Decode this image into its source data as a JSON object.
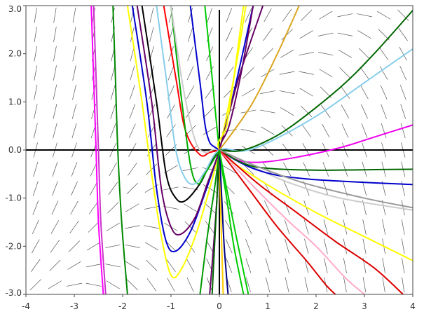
{
  "chart_data": {
    "type": "line",
    "title": "",
    "xlabel": "",
    "ylabel": "",
    "xlim": [
      -4,
      4
    ],
    "ylim": [
      -3,
      3
    ],
    "x_ticks": [
      "-4",
      "-3",
      "-2",
      "-1",
      "0",
      "1",
      "2",
      "3",
      "4"
    ],
    "y_ticks": [
      "3.0",
      "2.0",
      "1.0",
      "0.0",
      "-1.0",
      "-2.0",
      "-3.0"
    ],
    "x_tick_values": [
      -4,
      -3,
      -2,
      -1,
      0,
      1,
      2,
      3,
      4
    ],
    "y_tick_values": [
      3,
      2,
      1,
      0,
      -1,
      -2,
      -3
    ],
    "grid": false,
    "slope_field": {
      "equation": "dy/dx = y - x",
      "x_step": 0.4,
      "y_step": 0.4,
      "color": "#555555"
    },
    "series": [
      {
        "color": "#ff00ff",
        "values": [
          [
            -2.65,
            3.0
          ],
          [
            -2.6,
            1.5
          ],
          [
            -2.55,
            0.0
          ],
          [
            -2.5,
            -1.5
          ],
          [
            -2.4,
            -3.0
          ]
        ]
      },
      {
        "color": "#cc33cc",
        "values": [
          [
            -2.6,
            3.0
          ],
          [
            -2.55,
            1.5
          ],
          [
            -2.5,
            0.0
          ],
          [
            -2.45,
            -1.5
          ],
          [
            -2.35,
            -3.0
          ]
        ]
      },
      {
        "color": "#008800",
        "values": [
          [
            -2.2,
            3.0
          ],
          [
            -2.15,
            1.5
          ],
          [
            -2.1,
            0.0
          ],
          [
            -2.02,
            -1.5
          ],
          [
            -1.9,
            -3.0
          ]
        ]
      },
      {
        "color": "#ffff00",
        "values": [
          [
            -1.9,
            3.0
          ],
          [
            -1.6,
            1.0
          ],
          [
            -1.4,
            -0.5
          ],
          [
            -1.2,
            -1.8
          ],
          [
            -1.0,
            -2.6
          ],
          [
            -0.8,
            -2.5
          ],
          [
            -0.5,
            -1.8
          ],
          [
            -0.2,
            -0.8
          ],
          [
            0.0,
            0.0
          ],
          [
            0.3,
            1.5
          ],
          [
            0.55,
            3.0
          ]
        ]
      },
      {
        "color": "#0000cc",
        "values": [
          [
            -1.8,
            3.0
          ],
          [
            -1.5,
            1.0
          ],
          [
            -1.3,
            -0.8
          ],
          [
            -1.1,
            -1.9
          ],
          [
            -0.9,
            -2.1
          ],
          [
            -0.6,
            -1.7
          ],
          [
            -0.3,
            -0.9
          ],
          [
            0.0,
            0.0
          ],
          [
            0.3,
            1.2
          ],
          [
            0.7,
            3.0
          ]
        ]
      },
      {
        "color": "#660066",
        "values": [
          [
            -1.7,
            3.0
          ],
          [
            -1.4,
            1.0
          ],
          [
            -1.2,
            -0.8
          ],
          [
            -1.0,
            -1.6
          ],
          [
            -0.8,
            -1.75
          ],
          [
            -0.5,
            -1.4
          ],
          [
            -0.25,
            -0.7
          ],
          [
            0.0,
            0.0
          ],
          [
            0.4,
            1.5
          ],
          [
            0.9,
            3.0
          ]
        ]
      },
      {
        "color": "#000000",
        "values": [
          [
            -1.6,
            3.0
          ],
          [
            -1.3,
            1.0
          ],
          [
            -1.1,
            -0.5
          ],
          [
            -0.9,
            -1.0
          ],
          [
            -0.7,
            -1.05
          ],
          [
            -0.4,
            -0.7
          ],
          [
            -0.2,
            -0.3
          ],
          [
            0.0,
            0.0
          ]
        ]
      },
      {
        "color": "#ff0000",
        "values": [
          [
            -1.15,
            3.0
          ],
          [
            -0.9,
            1.5
          ],
          [
            -0.7,
            0.4
          ],
          [
            -0.4,
            -0.1
          ],
          [
            -0.2,
            -0.05
          ],
          [
            0.0,
            0.0
          ]
        ]
      },
      {
        "color": "#00aa00",
        "values": [
          [
            -1.0,
            3.0
          ],
          [
            -0.8,
            1.2
          ],
          [
            -0.6,
            -0.3
          ],
          [
            -0.45,
            -0.7
          ],
          [
            -0.3,
            -0.5
          ],
          [
            0.0,
            0.0
          ]
        ]
      },
      {
        "color": "#87ceeb",
        "values": [
          [
            -1.3,
            3.0
          ],
          [
            -1.1,
            1.5
          ],
          [
            -0.9,
            0.0
          ],
          [
            -0.7,
            -0.6
          ],
          [
            -0.5,
            -0.7
          ],
          [
            -0.3,
            -0.45
          ],
          [
            0.0,
            0.0
          ],
          [
            0.5,
            -0.02
          ],
          [
            1.0,
            0.15
          ],
          [
            2.0,
            0.7
          ],
          [
            3.0,
            1.4
          ],
          [
            4.0,
            2.1
          ]
        ]
      },
      {
        "color": "#cccccc",
        "values": [
          [
            -1.0,
            3.0
          ],
          [
            -0.75,
            1.3
          ],
          [
            -0.5,
            0.2
          ],
          [
            -0.3,
            -0.05
          ],
          [
            0.0,
            0.0
          ],
          [
            0.8,
            -0.4
          ],
          [
            1.5,
            -0.7
          ],
          [
            2.5,
            -1.0
          ],
          [
            4.0,
            -1.25
          ]
        ]
      },
      {
        "color": "#0000cc",
        "values": [
          [
            -0.6,
            3.0
          ],
          [
            -0.4,
            1.4
          ],
          [
            -0.25,
            0.3
          ],
          [
            0.0,
            0.0
          ],
          [
            0.8,
            -0.42
          ],
          [
            1.8,
            -0.6
          ],
          [
            4.0,
            -0.72
          ]
        ]
      },
      {
        "color": "#00cc00",
        "values": [
          [
            -0.3,
            3.0
          ],
          [
            -0.15,
            1.5
          ],
          [
            0.0,
            0.0
          ],
          [
            0.15,
            -1.0
          ],
          [
            0.3,
            -2.0
          ],
          [
            0.5,
            -3.0
          ]
        ]
      },
      {
        "color": "#ffff00",
        "values": [
          [
            0.5,
            3.0
          ],
          [
            0.3,
            1.5
          ],
          [
            0.15,
            0.5
          ],
          [
            0.0,
            0.0
          ],
          [
            0.8,
            -0.6
          ],
          [
            2.0,
            -1.3
          ],
          [
            3.0,
            -1.8
          ],
          [
            4.0,
            -2.3
          ]
        ]
      },
      {
        "color": "#660066",
        "values": [
          [
            0.7,
            3.0
          ],
          [
            0.45,
            1.6
          ],
          [
            0.2,
            0.5
          ],
          [
            0.0,
            0.0
          ],
          [
            -0.05,
            -1.0
          ],
          [
            -0.12,
            -2.0
          ],
          [
            -0.2,
            -3.0
          ]
        ]
      },
      {
        "color": "#daa520",
        "values": [
          [
            1.65,
            3.0
          ],
          [
            1.2,
            2.0
          ],
          [
            0.7,
            1.0
          ],
          [
            0.3,
            0.4
          ],
          [
            0.0,
            0.0
          ]
        ]
      },
      {
        "color": "#006600",
        "values": [
          [
            0.0,
            0.0
          ],
          [
            0.4,
            -0.02
          ],
          [
            0.9,
            0.15
          ],
          [
            1.5,
            0.5
          ],
          [
            2.5,
            1.3
          ],
          [
            3.2,
            2.0
          ],
          [
            4.0,
            2.9
          ]
        ]
      },
      {
        "color": "#ee00ee",
        "values": [
          [
            0.0,
            0.0
          ],
          [
            0.4,
            -0.22
          ],
          [
            0.9,
            -0.25
          ],
          [
            1.6,
            -0.15
          ],
          [
            2.5,
            0.05
          ],
          [
            3.3,
            0.3
          ],
          [
            4.0,
            0.52
          ]
        ]
      },
      {
        "color": "#006600",
        "values": [
          [
            0.0,
            0.0
          ],
          [
            0.5,
            -0.28
          ],
          [
            1.0,
            -0.38
          ],
          [
            2.0,
            -0.42
          ],
          [
            3.0,
            -0.41
          ],
          [
            4.0,
            -0.4
          ]
        ]
      },
      {
        "color": "#dd0000",
        "values": [
          [
            0.0,
            0.0
          ],
          [
            0.6,
            -0.8
          ],
          [
            1.2,
            -1.6
          ],
          [
            1.8,
            -2.3
          ],
          [
            2.2,
            -2.8
          ],
          [
            2.4,
            -3.0
          ]
        ]
      },
      {
        "color": "#ffaacc",
        "values": [
          [
            0.0,
            0.0
          ],
          [
            0.7,
            -0.75
          ],
          [
            1.4,
            -1.45
          ],
          [
            2.0,
            -2.0
          ],
          [
            2.6,
            -2.65
          ],
          [
            3.0,
            -3.0
          ]
        ]
      },
      {
        "color": "#dd0000",
        "values": [
          [
            0.0,
            0.0
          ],
          [
            0.8,
            -0.7
          ],
          [
            1.6,
            -1.3
          ],
          [
            2.4,
            -1.9
          ],
          [
            3.2,
            -2.45
          ],
          [
            3.8,
            -3.0
          ]
        ]
      },
      {
        "color": "#999999",
        "values": [
          [
            0.0,
            0.0
          ],
          [
            0.8,
            -0.35
          ],
          [
            1.8,
            -0.7
          ],
          [
            3.0,
            -1.0
          ],
          [
            4.0,
            -1.2
          ]
        ]
      },
      {
        "color": "#006600",
        "values": [
          [
            0.0,
            0.0
          ],
          [
            -0.05,
            -1.0
          ],
          [
            -0.1,
            -2.0
          ],
          [
            -0.15,
            -3.0
          ]
        ]
      },
      {
        "color": "#ffcc00",
        "values": [
          [
            0.0,
            0.0
          ],
          [
            0.02,
            -1.0
          ],
          [
            0.05,
            -2.0
          ],
          [
            0.08,
            -3.0
          ]
        ]
      },
      {
        "color": "#000080",
        "values": [
          [
            0.0,
            0.0
          ],
          [
            0.05,
            -1.0
          ],
          [
            0.1,
            -2.0
          ],
          [
            0.18,
            -3.0
          ]
        ]
      },
      {
        "color": "#00cc00",
        "values": [
          [
            0.0,
            0.0
          ],
          [
            0.15,
            -0.8
          ],
          [
            0.35,
            -1.8
          ],
          [
            0.6,
            -3.0
          ]
        ]
      },
      {
        "color": "#009900",
        "values": [
          [
            0.0,
            0.0
          ],
          [
            -0.1,
            -0.8
          ],
          [
            -0.25,
            -1.8
          ],
          [
            -0.4,
            -3.0
          ]
        ]
      }
    ]
  }
}
